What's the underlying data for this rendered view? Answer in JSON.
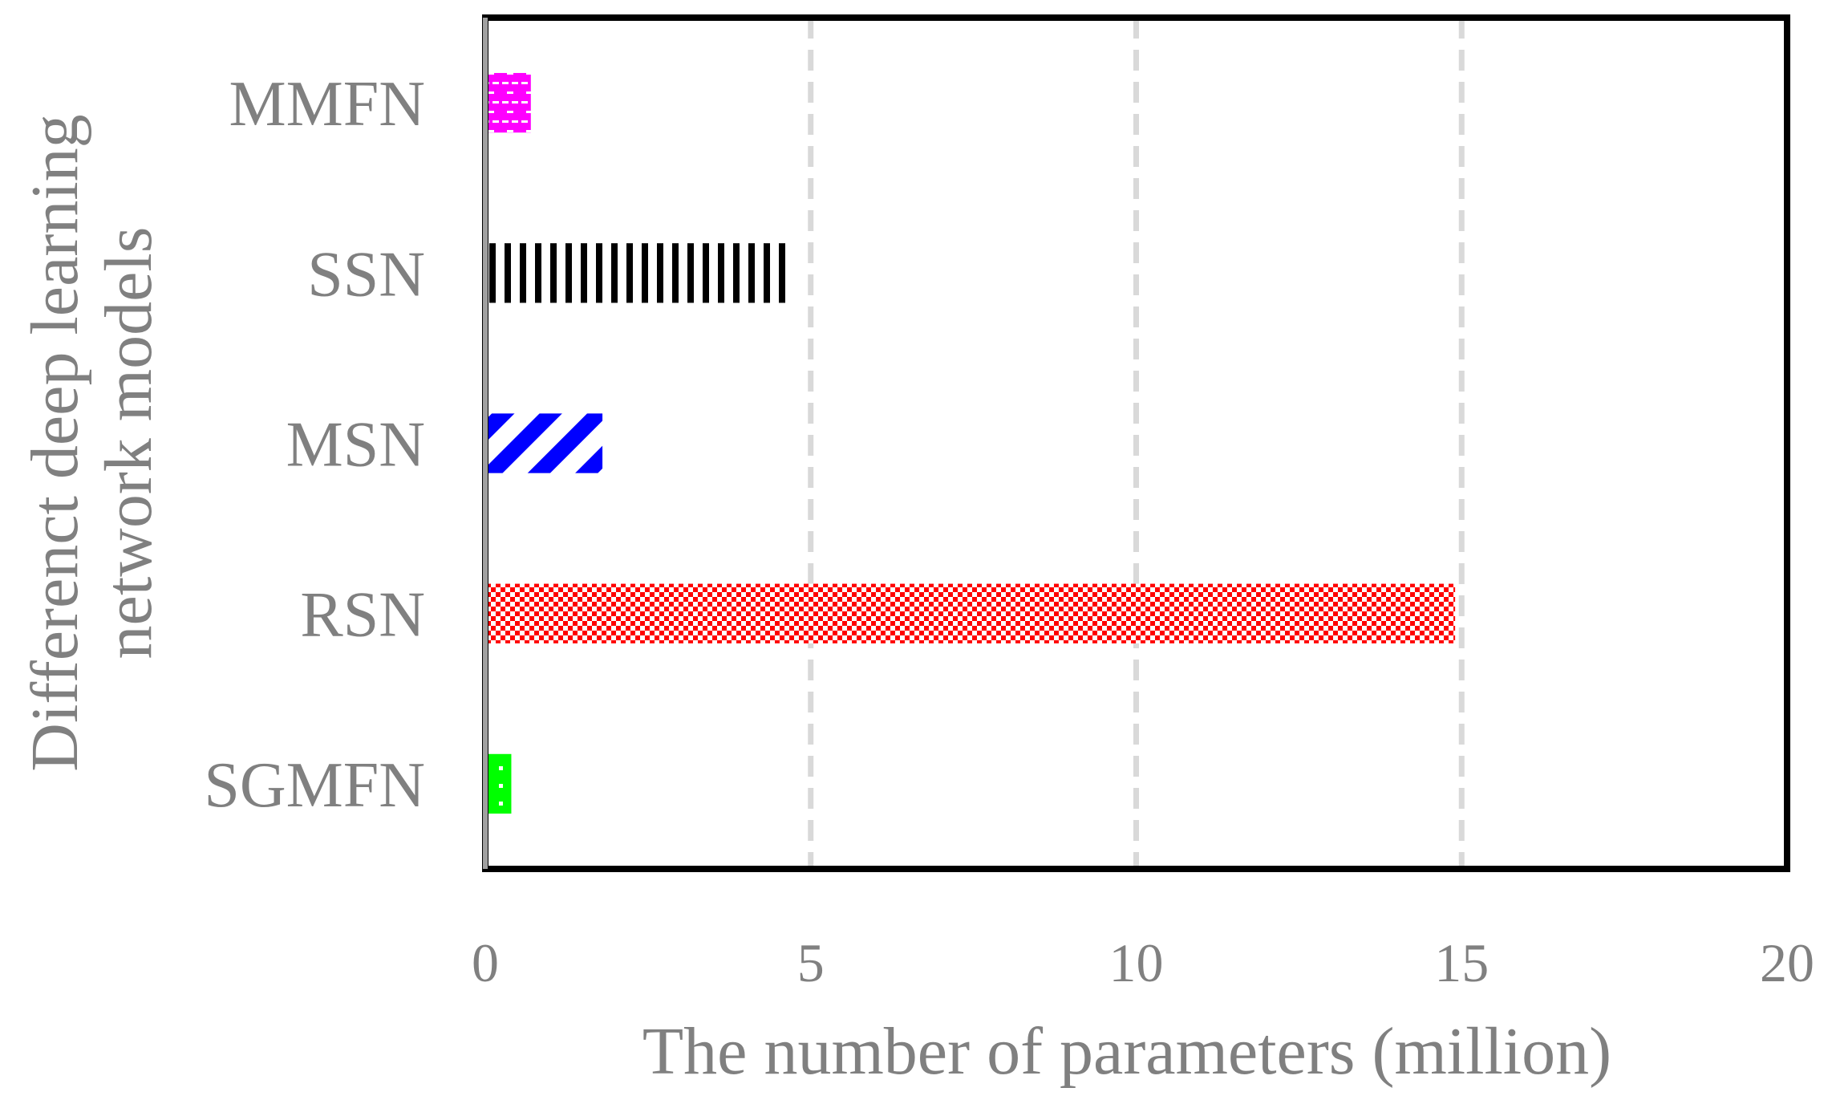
{
  "chart_data": {
    "type": "bar",
    "orientation": "horizontal",
    "title": "",
    "xlabel": "The number of parameters (million)",
    "ylabel": "Differenct deep learning network models",
    "categories": [
      "MMFN",
      "SSN",
      "MSN",
      "RSN",
      "SGMFN"
    ],
    "values": [
      0.7,
      4.7,
      1.8,
      14.9,
      0.4
    ],
    "xlim": [
      0,
      20
    ],
    "xticks": [
      "0",
      "5",
      "10",
      "15",
      "20"
    ],
    "grid": "vertical-dashed",
    "legend": "none",
    "colors": {
      "MMFN": "#ff00ff",
      "SSN": "#000000",
      "MSN": "#0000ff",
      "RSN": "#ff0000",
      "SGMFN": "#00ff00",
      "grid": "#d9d9d9",
      "frame": "#000000",
      "text": "#808080"
    },
    "patterns": {
      "MMFN": "brick",
      "SSN": "vertical-stripes",
      "MSN": "diagonal-stripes",
      "RSN": "checker",
      "SGMFN": "dotted"
    }
  }
}
